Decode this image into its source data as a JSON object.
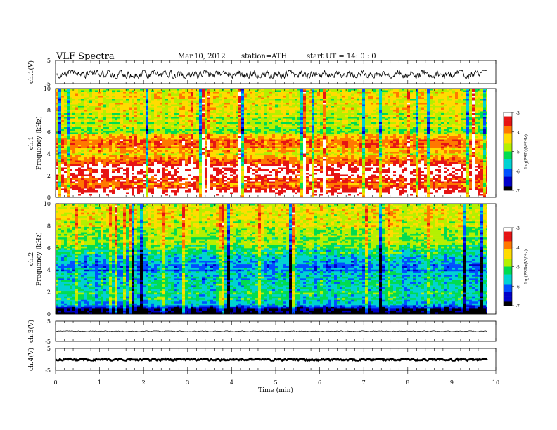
{
  "header": {
    "title": "VLF  Spectra",
    "date": "Mar.10, 2012",
    "station": "station=ATH",
    "start": "start  UT  =   14: 0  : 0"
  },
  "chart_data": [
    {
      "type": "line",
      "panel": "ch1-waveform",
      "ylabel": "ch.1(V)",
      "yticks": [
        "5",
        "-5"
      ],
      "ylim": [
        -5,
        5
      ],
      "xlim": [
        0,
        10
      ],
      "data_xrange": [
        0,
        9.8
      ],
      "approx_range": [
        -2.7,
        0.7
      ],
      "color": "#000000"
    },
    {
      "type": "heatmap",
      "panel": "ch1-spectrogram",
      "ylabel_top": "ch.1",
      "ylabel": "Frequency  (kHz)",
      "yticks": [
        "0",
        "2",
        "4",
        "6",
        "8",
        "10"
      ],
      "ylim": [
        0,
        10
      ],
      "xlim": [
        0,
        10
      ],
      "data_xrange": [
        0,
        9.8
      ],
      "colorbar": {
        "label": "log(PSD)(V²/Hz)",
        "ticks": [
          "-3",
          "-4",
          "-5",
          "-6",
          "-7"
        ],
        "range": [
          -7,
          -3
        ]
      },
      "band_profile_log_psd": [
        [
          0.3,
          -3.1
        ],
        [
          1.0,
          -3.8
        ],
        [
          2.0,
          -3.3
        ],
        [
          3.0,
          -3.2
        ],
        [
          4.0,
          -4.6
        ],
        [
          5.0,
          -3.4
        ],
        [
          6.0,
          -4.8
        ],
        [
          7.0,
          -4.7
        ],
        [
          8.0,
          -4.5
        ],
        [
          9.0,
          -4.4
        ],
        [
          10.0,
          -4.6
        ]
      ]
    },
    {
      "type": "heatmap",
      "panel": "ch2-spectrogram",
      "ylabel_top": "ch.2",
      "ylabel": "Frequency  (kHz)",
      "yticks": [
        "0",
        "2",
        "4",
        "6",
        "8",
        "10"
      ],
      "ylim": [
        0,
        10
      ],
      "xlim": [
        0,
        10
      ],
      "data_xrange": [
        0,
        9.8
      ],
      "colorbar": {
        "label": "log(PSD)(V²/Hz)",
        "ticks": [
          "-3",
          "-4",
          "-5",
          "-6",
          "-7"
        ],
        "range": [
          -7,
          -3
        ]
      },
      "band_profile_log_psd": [
        [
          0.3,
          -6.9
        ],
        [
          1.0,
          -5.6
        ],
        [
          2.0,
          -5.4
        ],
        [
          3.0,
          -5.6
        ],
        [
          4.0,
          -6.0
        ],
        [
          5.0,
          -5.8
        ],
        [
          6.0,
          -5.1
        ],
        [
          7.0,
          -4.9
        ],
        [
          8.0,
          -4.6
        ],
        [
          9.0,
          -4.5
        ],
        [
          10.0,
          -4.7
        ]
      ]
    },
    {
      "type": "line",
      "panel": "ch3-waveform",
      "ylabel": "ch.3(V)",
      "yticks": [
        "5",
        "-5"
      ],
      "ylim": [
        -5,
        5
      ],
      "xlim": [
        0,
        10
      ],
      "data_xrange": [
        0,
        9.8
      ],
      "approx_range": [
        -0.2,
        0.2
      ],
      "color": "#000000"
    },
    {
      "type": "line",
      "panel": "ch4-waveform",
      "ylabel": "ch.4(V)",
      "yticks": [
        "5",
        "-5"
      ],
      "ylim": [
        -5,
        5
      ],
      "xlim": [
        0,
        10
      ],
      "data_xrange": [
        0,
        9.8
      ],
      "approx_range": [
        -0.6,
        0.3
      ],
      "color": "#000000"
    }
  ],
  "xaxis": {
    "label": "Time  (min)",
    "ticks": [
      "0",
      "1",
      "2",
      "3",
      "4",
      "5",
      "6",
      "7",
      "8",
      "9",
      "10"
    ],
    "range": [
      0,
      10
    ]
  },
  "colors": {
    "colormap": [
      "#000000",
      "#0000c8",
      "#0050ff",
      "#00d2d2",
      "#00dc50",
      "#b4f000",
      "#ffdc00",
      "#ff7800",
      "#e61414",
      "#ffffff"
    ],
    "trace": "#000000"
  }
}
